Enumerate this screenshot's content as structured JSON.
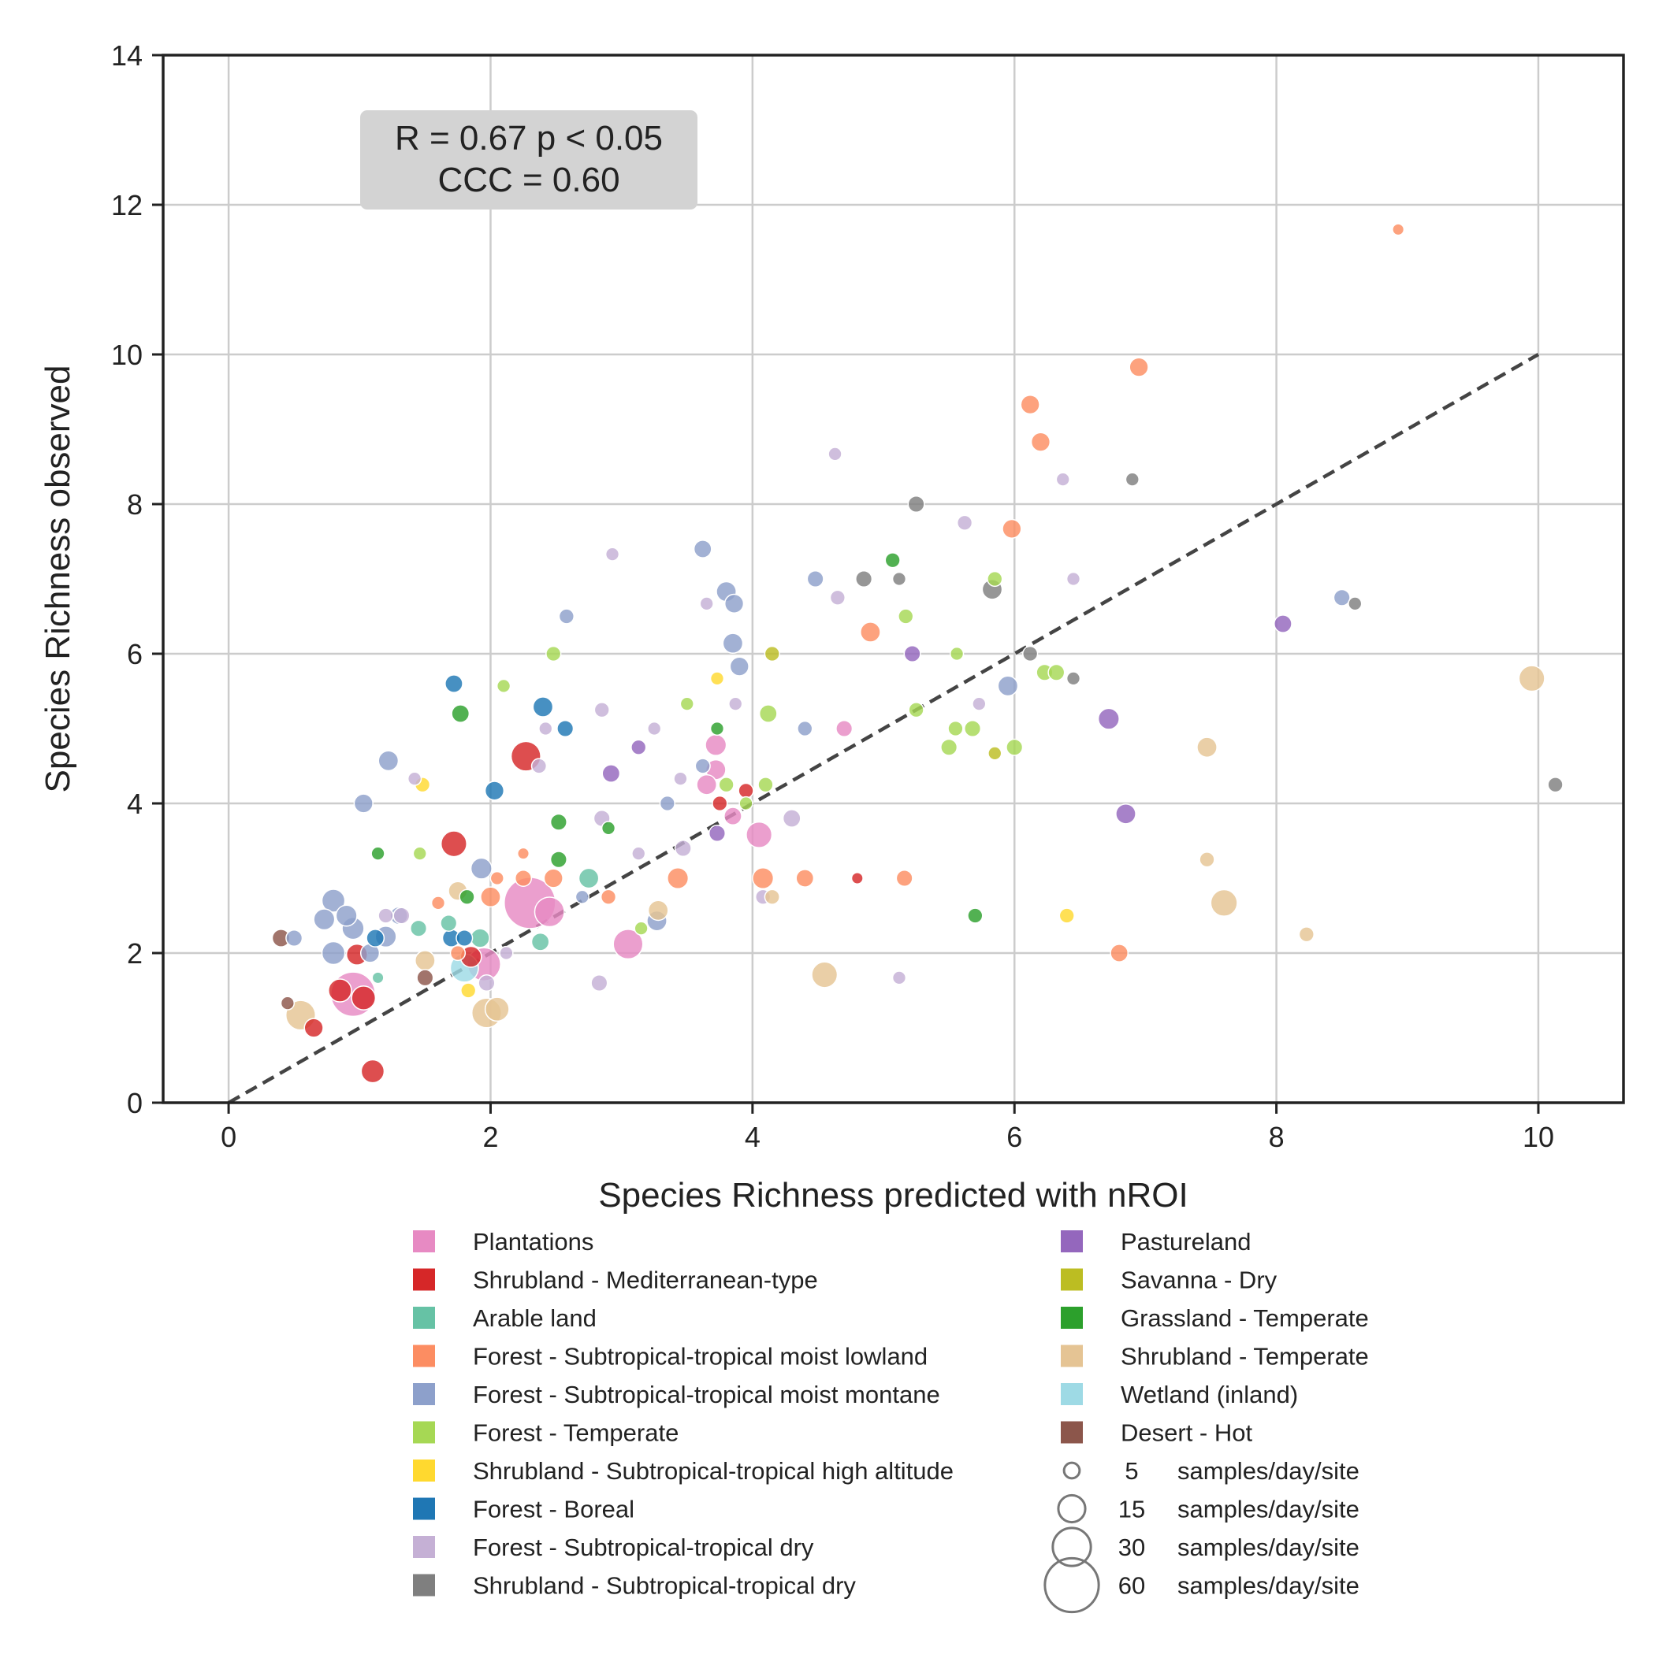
{
  "chart_data": {
    "type": "scatter",
    "xlabel": "Species Richness predicted with nROI",
    "ylabel": "Species Richness observed",
    "xlim": [
      -0.5,
      10.65
    ],
    "ylim": [
      0,
      14
    ],
    "x_ticks": [
      0,
      2,
      4,
      6,
      8,
      10
    ],
    "y_ticks": [
      0,
      2,
      4,
      6,
      8,
      10,
      12,
      14
    ],
    "grid": true,
    "identity_line": {
      "x": [
        0,
        10
      ],
      "y": [
        0,
        10
      ],
      "style": "dashed",
      "color": "#444444"
    },
    "annotation": {
      "line1": "R = 0.67 p < 0.05",
      "line2": "CCC = 0.60"
    },
    "legend_placement": "below",
    "categories": [
      {
        "name": "Plantations",
        "color": "#e78ac3"
      },
      {
        "name": "Shrubland - Mediterranean-type",
        "color": "#d62728"
      },
      {
        "name": "Arable land",
        "color": "#66c2a5"
      },
      {
        "name": "Forest - Subtropical-tropical moist lowland",
        "color": "#fc8d62"
      },
      {
        "name": "Forest - Subtropical-tropical moist montane",
        "color": "#8da0cb"
      },
      {
        "name": "Forest - Temperate",
        "color": "#a6d854"
      },
      {
        "name": "Shrubland - Subtropical-tropical high altitude",
        "color": "#ffd92f"
      },
      {
        "name": "Forest - Boreal",
        "color": "#1f77b4"
      },
      {
        "name": "Forest - Subtropical-tropical dry",
        "color": "#c5b0d5"
      },
      {
        "name": "Shrubland - Subtropical-tropical dry",
        "color": "#7f7f7f"
      },
      {
        "name": "Pastureland",
        "color": "#9467bd"
      },
      {
        "name": "Savanna - Dry",
        "color": "#bcbd22"
      },
      {
        "name": "Grassland - Temperate",
        "color": "#2ca02c"
      },
      {
        "name": "Shrubland - Temperate",
        "color": "#e5c494"
      },
      {
        "name": "Wetland (inland)",
        "color": "#9edae5"
      },
      {
        "name": "Desert - Hot",
        "color": "#8c564b"
      }
    ],
    "size_legend": [
      {
        "value": "5",
        "unit": "samples/day/site"
      },
      {
        "value": "15",
        "unit": "samples/day/site"
      },
      {
        "value": "30",
        "unit": "samples/day/site"
      },
      {
        "value": "60",
        "unit": "samples/day/site"
      }
    ],
    "size_unit": "samples/day/site",
    "points": [
      {
        "x": 2.3,
        "y": 2.67,
        "c": 0,
        "s": 60
      },
      {
        "x": 0.95,
        "y": 1.45,
        "c": 0,
        "s": 45
      },
      {
        "x": 3.05,
        "y": 2.12,
        "c": 0,
        "s": 20
      },
      {
        "x": 4.05,
        "y": 3.58,
        "c": 0,
        "s": 15
      },
      {
        "x": 3.72,
        "y": 4.78,
        "c": 0,
        "s": 10
      },
      {
        "x": 3.72,
        "y": 4.45,
        "c": 0,
        "s": 9
      },
      {
        "x": 3.65,
        "y": 4.25,
        "c": 0,
        "s": 9
      },
      {
        "x": 3.85,
        "y": 3.83,
        "c": 0,
        "s": 7
      },
      {
        "x": 4.7,
        "y": 5.0,
        "c": 0,
        "s": 6
      },
      {
        "x": 2.45,
        "y": 2.55,
        "c": 0,
        "s": 20
      },
      {
        "x": 1.95,
        "y": 1.85,
        "c": 0,
        "s": 25
      },
      {
        "x": 2.27,
        "y": 4.63,
        "c": 1,
        "s": 20
      },
      {
        "x": 1.72,
        "y": 3.46,
        "c": 1,
        "s": 15
      },
      {
        "x": 0.98,
        "y": 1.98,
        "c": 1,
        "s": 10
      },
      {
        "x": 0.85,
        "y": 1.5,
        "c": 1,
        "s": 12
      },
      {
        "x": 1.03,
        "y": 1.4,
        "c": 1,
        "s": 13
      },
      {
        "x": 0.65,
        "y": 1.0,
        "c": 1,
        "s": 8
      },
      {
        "x": 1.1,
        "y": 0.42,
        "c": 1,
        "s": 12
      },
      {
        "x": 1.85,
        "y": 1.95,
        "c": 1,
        "s": 10
      },
      {
        "x": 3.75,
        "y": 4.0,
        "c": 1,
        "s": 5
      },
      {
        "x": 3.95,
        "y": 4.17,
        "c": 1,
        "s": 5
      },
      {
        "x": 4.8,
        "y": 3.0,
        "c": 1,
        "s": 3
      },
      {
        "x": 2.75,
        "y": 3.0,
        "c": 2,
        "s": 9
      },
      {
        "x": 2.38,
        "y": 2.15,
        "c": 2,
        "s": 7
      },
      {
        "x": 1.92,
        "y": 2.2,
        "c": 2,
        "s": 8
      },
      {
        "x": 1.45,
        "y": 2.33,
        "c": 2,
        "s": 6
      },
      {
        "x": 1.68,
        "y": 2.4,
        "c": 2,
        "s": 6
      },
      {
        "x": 1.14,
        "y": 1.67,
        "c": 2,
        "s": 3
      },
      {
        "x": 8.93,
        "y": 11.67,
        "c": 3,
        "s": 3
      },
      {
        "x": 6.95,
        "y": 9.83,
        "c": 3,
        "s": 8
      },
      {
        "x": 6.12,
        "y": 9.33,
        "c": 3,
        "s": 8
      },
      {
        "x": 6.2,
        "y": 8.83,
        "c": 3,
        "s": 8
      },
      {
        "x": 5.98,
        "y": 7.67,
        "c": 3,
        "s": 8
      },
      {
        "x": 4.9,
        "y": 6.29,
        "c": 3,
        "s": 9
      },
      {
        "x": 3.43,
        "y": 3.0,
        "c": 3,
        "s": 10
      },
      {
        "x": 4.08,
        "y": 3.0,
        "c": 3,
        "s": 10
      },
      {
        "x": 4.4,
        "y": 3.0,
        "c": 3,
        "s": 7
      },
      {
        "x": 5.16,
        "y": 3.0,
        "c": 3,
        "s": 6
      },
      {
        "x": 6.8,
        "y": 2.0,
        "c": 3,
        "s": 7
      },
      {
        "x": 2.0,
        "y": 2.75,
        "c": 3,
        "s": 9
      },
      {
        "x": 2.48,
        "y": 3.0,
        "c": 3,
        "s": 8
      },
      {
        "x": 2.25,
        "y": 3.0,
        "c": 3,
        "s": 6
      },
      {
        "x": 2.05,
        "y": 3.0,
        "c": 3,
        "s": 4
      },
      {
        "x": 2.9,
        "y": 2.75,
        "c": 3,
        "s": 5
      },
      {
        "x": 2.25,
        "y": 3.33,
        "c": 3,
        "s": 3
      },
      {
        "x": 1.6,
        "y": 2.67,
        "c": 3,
        "s": 4
      },
      {
        "x": 1.75,
        "y": 2.0,
        "c": 3,
        "s": 5
      },
      {
        "x": 1.22,
        "y": 4.57,
        "c": 4,
        "s": 9
      },
      {
        "x": 1.03,
        "y": 4.0,
        "c": 4,
        "s": 8
      },
      {
        "x": 0.8,
        "y": 2.7,
        "c": 4,
        "s": 12
      },
      {
        "x": 0.73,
        "y": 2.45,
        "c": 4,
        "s": 10
      },
      {
        "x": 0.9,
        "y": 2.5,
        "c": 4,
        "s": 10
      },
      {
        "x": 0.95,
        "y": 2.33,
        "c": 4,
        "s": 11
      },
      {
        "x": 0.8,
        "y": 2.0,
        "c": 4,
        "s": 12
      },
      {
        "x": 1.2,
        "y": 2.22,
        "c": 4,
        "s": 10
      },
      {
        "x": 1.08,
        "y": 2.0,
        "c": 4,
        "s": 8
      },
      {
        "x": 1.3,
        "y": 2.5,
        "c": 4,
        "s": 7
      },
      {
        "x": 0.5,
        "y": 2.2,
        "c": 4,
        "s": 6
      },
      {
        "x": 1.93,
        "y": 3.13,
        "c": 4,
        "s": 10
      },
      {
        "x": 3.62,
        "y": 7.4,
        "c": 4,
        "s": 7
      },
      {
        "x": 3.8,
        "y": 6.83,
        "c": 4,
        "s": 9
      },
      {
        "x": 3.86,
        "y": 6.67,
        "c": 4,
        "s": 8
      },
      {
        "x": 3.85,
        "y": 6.14,
        "c": 4,
        "s": 9
      },
      {
        "x": 3.9,
        "y": 5.83,
        "c": 4,
        "s": 8
      },
      {
        "x": 2.58,
        "y": 6.5,
        "c": 4,
        "s": 5
      },
      {
        "x": 4.48,
        "y": 7.0,
        "c": 4,
        "s": 6
      },
      {
        "x": 5.95,
        "y": 5.57,
        "c": 4,
        "s": 9
      },
      {
        "x": 8.5,
        "y": 6.75,
        "c": 4,
        "s": 6
      },
      {
        "x": 3.62,
        "y": 4.5,
        "c": 4,
        "s": 5
      },
      {
        "x": 4.4,
        "y": 5.0,
        "c": 4,
        "s": 5
      },
      {
        "x": 3.35,
        "y": 4.0,
        "c": 4,
        "s": 5
      },
      {
        "x": 3.27,
        "y": 2.43,
        "c": 4,
        "s": 9
      },
      {
        "x": 2.7,
        "y": 2.75,
        "c": 4,
        "s": 4
      },
      {
        "x": 2.1,
        "y": 5.57,
        "c": 5,
        "s": 4
      },
      {
        "x": 2.48,
        "y": 6.0,
        "c": 5,
        "s": 5
      },
      {
        "x": 3.5,
        "y": 5.33,
        "c": 5,
        "s": 4
      },
      {
        "x": 4.12,
        "y": 5.2,
        "c": 5,
        "s": 7
      },
      {
        "x": 5.17,
        "y": 6.5,
        "c": 5,
        "s": 5
      },
      {
        "x": 5.85,
        "y": 7.0,
        "c": 5,
        "s": 5
      },
      {
        "x": 5.56,
        "y": 6.0,
        "c": 5,
        "s": 4
      },
      {
        "x": 5.25,
        "y": 5.25,
        "c": 5,
        "s": 5
      },
      {
        "x": 5.55,
        "y": 5.0,
        "c": 5,
        "s": 5
      },
      {
        "x": 5.68,
        "y": 5.0,
        "c": 5,
        "s": 6
      },
      {
        "x": 5.5,
        "y": 4.75,
        "c": 5,
        "s": 6
      },
      {
        "x": 6.0,
        "y": 4.75,
        "c": 5,
        "s": 6
      },
      {
        "x": 6.23,
        "y": 5.75,
        "c": 5,
        "s": 6
      },
      {
        "x": 6.32,
        "y": 5.75,
        "c": 5,
        "s": 6
      },
      {
        "x": 3.8,
        "y": 4.25,
        "c": 5,
        "s": 5
      },
      {
        "x": 3.95,
        "y": 4.0,
        "c": 5,
        "s": 4
      },
      {
        "x": 4.1,
        "y": 4.25,
        "c": 5,
        "s": 5
      },
      {
        "x": 1.46,
        "y": 3.33,
        "c": 5,
        "s": 4
      },
      {
        "x": 3.15,
        "y": 2.33,
        "c": 5,
        "s": 4
      },
      {
        "x": 1.48,
        "y": 4.25,
        "c": 6,
        "s": 5
      },
      {
        "x": 3.73,
        "y": 5.67,
        "c": 6,
        "s": 4
      },
      {
        "x": 6.4,
        "y": 2.5,
        "c": 6,
        "s": 5
      },
      {
        "x": 1.83,
        "y": 1.5,
        "c": 6,
        "s": 5
      },
      {
        "x": 1.72,
        "y": 5.6,
        "c": 7,
        "s": 7
      },
      {
        "x": 2.4,
        "y": 5.29,
        "c": 7,
        "s": 9
      },
      {
        "x": 2.57,
        "y": 5.0,
        "c": 7,
        "s": 6
      },
      {
        "x": 2.03,
        "y": 4.17,
        "c": 7,
        "s": 8
      },
      {
        "x": 1.12,
        "y": 2.2,
        "c": 7,
        "s": 7
      },
      {
        "x": 1.7,
        "y": 2.2,
        "c": 7,
        "s": 7
      },
      {
        "x": 1.8,
        "y": 2.2,
        "c": 7,
        "s": 6
      },
      {
        "x": 2.93,
        "y": 7.33,
        "c": 8,
        "s": 4
      },
      {
        "x": 4.63,
        "y": 8.67,
        "c": 8,
        "s": 4
      },
      {
        "x": 5.62,
        "y": 7.75,
        "c": 8,
        "s": 5
      },
      {
        "x": 6.37,
        "y": 8.33,
        "c": 8,
        "s": 4
      },
      {
        "x": 6.45,
        "y": 7.0,
        "c": 8,
        "s": 4
      },
      {
        "x": 4.65,
        "y": 6.75,
        "c": 8,
        "s": 5
      },
      {
        "x": 3.65,
        "y": 6.67,
        "c": 8,
        "s": 4
      },
      {
        "x": 3.87,
        "y": 5.33,
        "c": 8,
        "s": 4
      },
      {
        "x": 5.73,
        "y": 5.33,
        "c": 8,
        "s": 4
      },
      {
        "x": 2.85,
        "y": 5.25,
        "c": 8,
        "s": 5
      },
      {
        "x": 3.25,
        "y": 5.0,
        "c": 8,
        "s": 4
      },
      {
        "x": 2.42,
        "y": 5.0,
        "c": 8,
        "s": 4
      },
      {
        "x": 2.37,
        "y": 4.5,
        "c": 8,
        "s": 5
      },
      {
        "x": 1.42,
        "y": 4.33,
        "c": 8,
        "s": 4
      },
      {
        "x": 4.3,
        "y": 3.8,
        "c": 8,
        "s": 7
      },
      {
        "x": 2.85,
        "y": 3.8,
        "c": 8,
        "s": 6
      },
      {
        "x": 3.47,
        "y": 3.4,
        "c": 8,
        "s": 6
      },
      {
        "x": 3.13,
        "y": 3.33,
        "c": 8,
        "s": 4
      },
      {
        "x": 3.45,
        "y": 4.33,
        "c": 8,
        "s": 4
      },
      {
        "x": 1.2,
        "y": 2.5,
        "c": 8,
        "s": 5
      },
      {
        "x": 1.32,
        "y": 2.5,
        "c": 8,
        "s": 6
      },
      {
        "x": 2.83,
        "y": 1.6,
        "c": 8,
        "s": 6
      },
      {
        "x": 5.12,
        "y": 1.67,
        "c": 8,
        "s": 4
      },
      {
        "x": 4.08,
        "y": 2.75,
        "c": 8,
        "s": 5
      },
      {
        "x": 1.97,
        "y": 1.6,
        "c": 8,
        "s": 6
      },
      {
        "x": 2.12,
        "y": 2.0,
        "c": 8,
        "s": 4
      },
      {
        "x": 5.25,
        "y": 8.0,
        "c": 9,
        "s": 6
      },
      {
        "x": 4.85,
        "y": 7.0,
        "c": 9,
        "s": 6
      },
      {
        "x": 5.12,
        "y": 7.0,
        "c": 9,
        "s": 4
      },
      {
        "x": 5.83,
        "y": 6.86,
        "c": 9,
        "s": 9
      },
      {
        "x": 6.9,
        "y": 8.33,
        "c": 9,
        "s": 4
      },
      {
        "x": 6.12,
        "y": 6.0,
        "c": 9,
        "s": 5
      },
      {
        "x": 6.45,
        "y": 5.67,
        "c": 9,
        "s": 4
      },
      {
        "x": 8.6,
        "y": 6.67,
        "c": 9,
        "s": 4
      },
      {
        "x": 10.13,
        "y": 4.25,
        "c": 9,
        "s": 5
      },
      {
        "x": 2.92,
        "y": 4.4,
        "c": 10,
        "s": 7
      },
      {
        "x": 3.13,
        "y": 4.75,
        "c": 10,
        "s": 5
      },
      {
        "x": 3.73,
        "y": 3.6,
        "c": 10,
        "s": 6
      },
      {
        "x": 5.22,
        "y": 6.0,
        "c": 10,
        "s": 6
      },
      {
        "x": 6.72,
        "y": 5.13,
        "c": 10,
        "s": 10
      },
      {
        "x": 6.85,
        "y": 3.86,
        "c": 10,
        "s": 9
      },
      {
        "x": 8.05,
        "y": 6.4,
        "c": 10,
        "s": 7
      },
      {
        "x": 4.15,
        "y": 6.0,
        "c": 11,
        "s": 5
      },
      {
        "x": 5.85,
        "y": 4.67,
        "c": 11,
        "s": 4
      },
      {
        "x": 1.77,
        "y": 5.2,
        "c": 12,
        "s": 7
      },
      {
        "x": 5.07,
        "y": 7.25,
        "c": 12,
        "s": 5
      },
      {
        "x": 2.52,
        "y": 3.75,
        "c": 12,
        "s": 6
      },
      {
        "x": 2.52,
        "y": 3.25,
        "c": 12,
        "s": 6
      },
      {
        "x": 1.14,
        "y": 3.33,
        "c": 12,
        "s": 4
      },
      {
        "x": 2.9,
        "y": 3.67,
        "c": 12,
        "s": 4
      },
      {
        "x": 3.73,
        "y": 5.0,
        "c": 12,
        "s": 4
      },
      {
        "x": 1.82,
        "y": 2.75,
        "c": 12,
        "s": 5
      },
      {
        "x": 5.7,
        "y": 2.5,
        "c": 12,
        "s": 5
      },
      {
        "x": 9.95,
        "y": 5.67,
        "c": 13,
        "s": 15
      },
      {
        "x": 7.47,
        "y": 4.75,
        "c": 13,
        "s": 9
      },
      {
        "x": 7.47,
        "y": 3.25,
        "c": 13,
        "s": 5
      },
      {
        "x": 7.6,
        "y": 2.67,
        "c": 13,
        "s": 16
      },
      {
        "x": 8.23,
        "y": 2.25,
        "c": 13,
        "s": 5
      },
      {
        "x": 4.55,
        "y": 1.71,
        "c": 13,
        "s": 15
      },
      {
        "x": 3.28,
        "y": 2.57,
        "c": 13,
        "s": 9
      },
      {
        "x": 4.15,
        "y": 2.75,
        "c": 13,
        "s": 5
      },
      {
        "x": 1.75,
        "y": 2.83,
        "c": 13,
        "s": 8
      },
      {
        "x": 1.5,
        "y": 1.9,
        "c": 13,
        "s": 9
      },
      {
        "x": 0.55,
        "y": 1.17,
        "c": 13,
        "s": 20
      },
      {
        "x": 1.97,
        "y": 1.2,
        "c": 13,
        "s": 20
      },
      {
        "x": 2.05,
        "y": 1.25,
        "c": 13,
        "s": 13
      },
      {
        "x": 1.8,
        "y": 1.8,
        "c": 14,
        "s": 18
      },
      {
        "x": 0.4,
        "y": 2.2,
        "c": 15,
        "s": 7
      },
      {
        "x": 0.45,
        "y": 1.33,
        "c": 15,
        "s": 4
      },
      {
        "x": 1.5,
        "y": 1.67,
        "c": 15,
        "s": 6
      }
    ]
  },
  "legend_heading": ""
}
